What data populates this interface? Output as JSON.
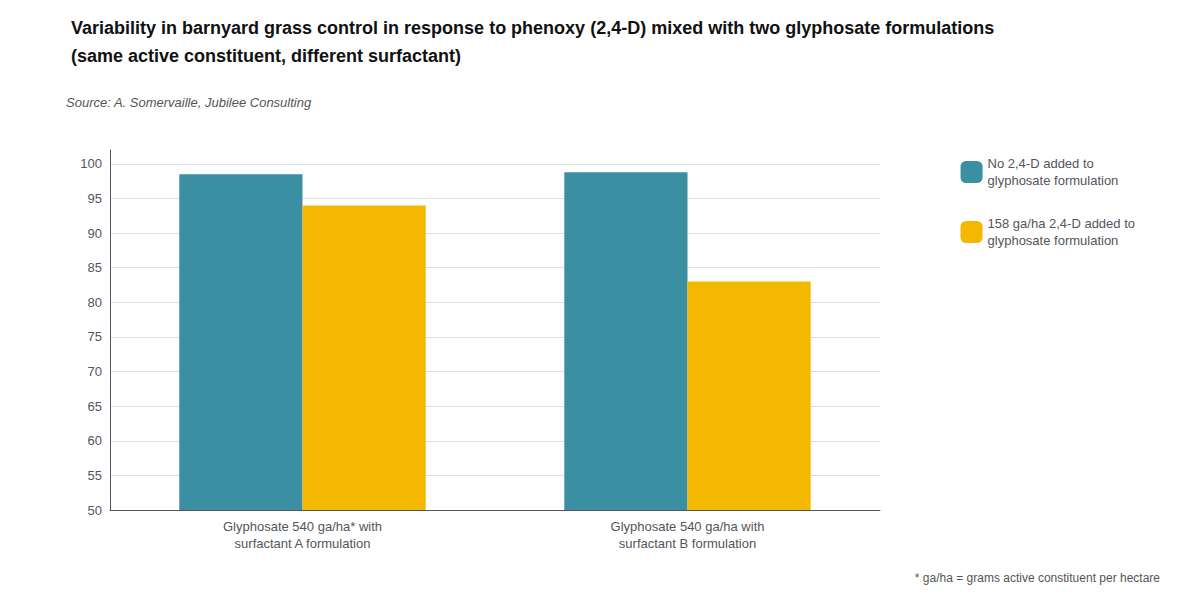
{
  "chart_data": {
    "type": "bar",
    "title": "Variability in barnyard grass control in response to phenoxy (2,4-D) mixed with two glyphosate formulations",
    "subtitle": "(same active constituent, different surfactant)",
    "annotations": [
      "Source: A. Somervaille, Jubilee Consulting",
      "* ga/ha = grams active constituent per hectare"
    ],
    "categories": [
      "Glyphosate 540 ga/ha* with\nsurfactant A formulation",
      "Glyphosate 540 ga/ha with\nsurfactant B formulation"
    ],
    "series": [
      {
        "name": "No 2,4-D added to\nglyphosate formulation",
        "values": [
          98.5,
          98.8
        ],
        "color": "#3a8fa3"
      },
      {
        "name": "158 ga/ha 2,4-D added to\nglyphosate formulation",
        "values": [
          94.0,
          83.0
        ],
        "color": "#f5b800"
      }
    ],
    "ylim": [
      50,
      102
    ],
    "yticks": [
      50,
      55,
      60,
      65,
      70,
      75,
      80,
      85,
      90,
      95,
      100
    ],
    "grid": true,
    "legend": "right"
  }
}
